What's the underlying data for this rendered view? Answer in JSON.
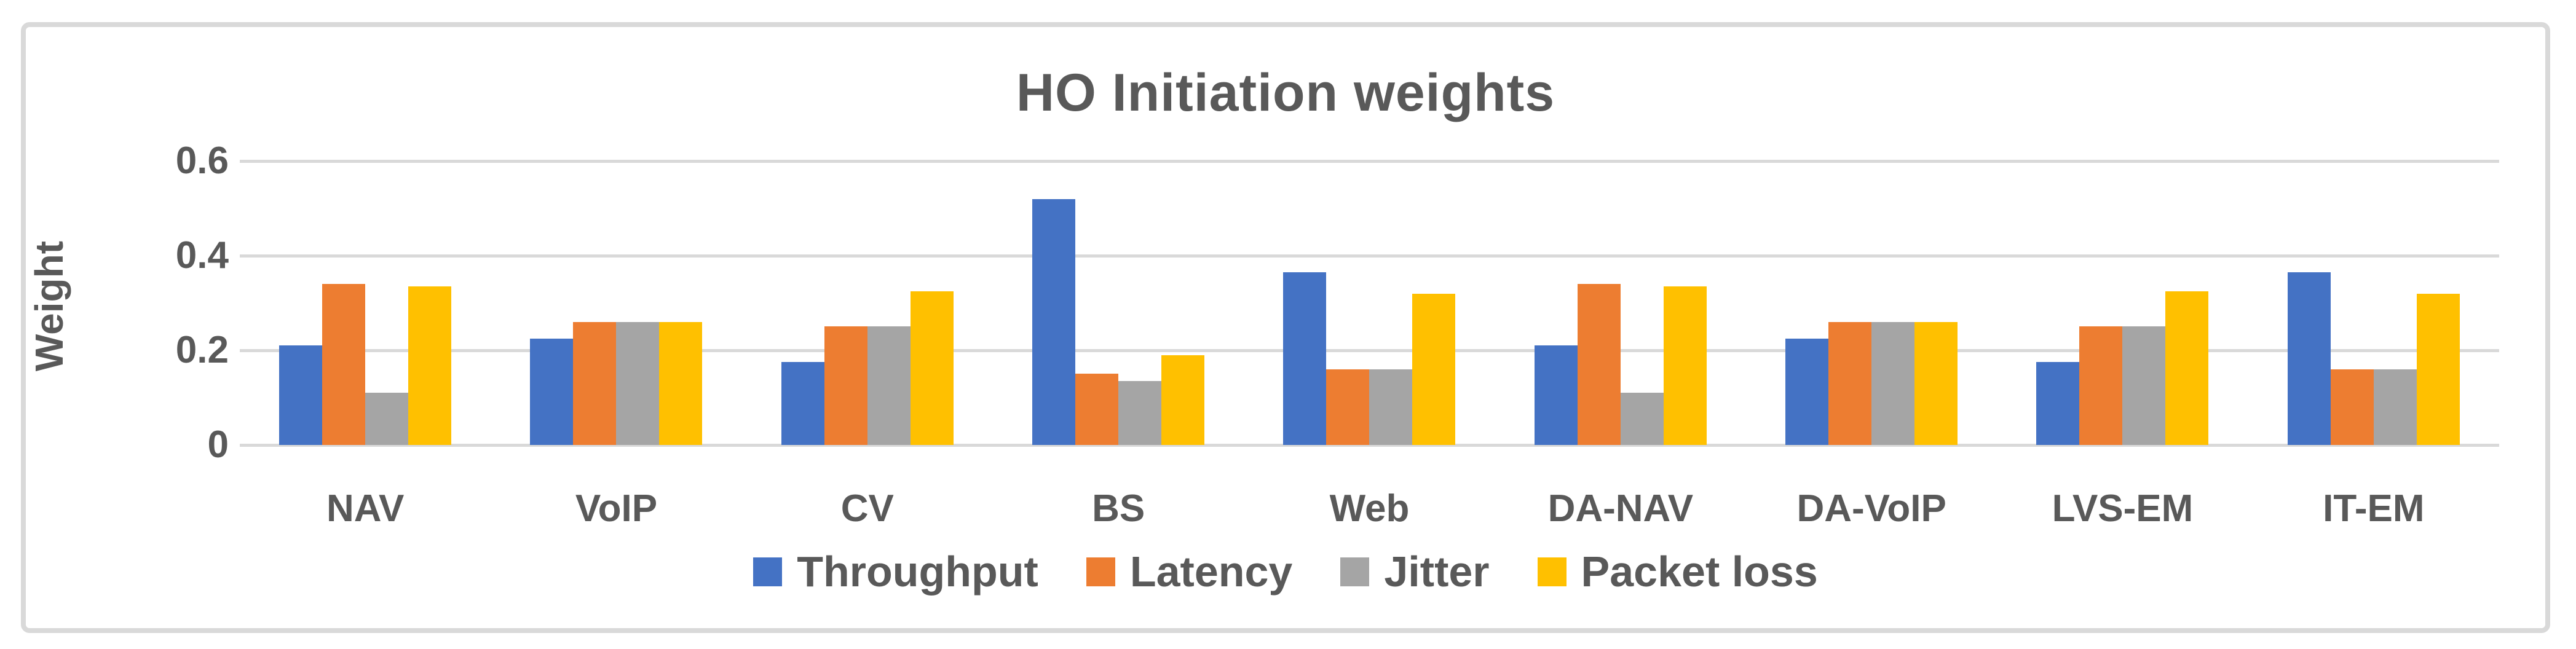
{
  "chart_data": {
    "type": "bar",
    "title": "HO Initiation weights",
    "xlabel": "",
    "ylabel": "Weight",
    "ylim": [
      0,
      0.6
    ],
    "yticks": [
      "0",
      "0.2",
      "0.4",
      "0.6"
    ],
    "grid": true,
    "legend_position": "bottom",
    "categories": [
      "NAV",
      "VoIP",
      "CV",
      "BS",
      "Web",
      "DA-NAV",
      "DA-VoIP",
      "LVS-EM",
      "IT-EM"
    ],
    "series": [
      {
        "name": "Throughput",
        "color": "#4472C4",
        "values": [
          0.21,
          0.225,
          0.175,
          0.52,
          0.365,
          0.21,
          0.225,
          0.175,
          0.365
        ]
      },
      {
        "name": "Latency",
        "color": "#ED7D31",
        "values": [
          0.34,
          0.26,
          0.25,
          0.15,
          0.16,
          0.34,
          0.26,
          0.25,
          0.16
        ]
      },
      {
        "name": "Jitter",
        "color": "#A5A5A5",
        "values": [
          0.11,
          0.26,
          0.25,
          0.135,
          0.16,
          0.11,
          0.26,
          0.25,
          0.16
        ]
      },
      {
        "name": "Packet loss",
        "color": "#FFC000",
        "values": [
          0.335,
          0.26,
          0.325,
          0.19,
          0.32,
          0.335,
          0.26,
          0.325,
          0.32
        ]
      }
    ]
  },
  "colors": {
    "text": "#595959",
    "gridline": "#D9D9D9",
    "border": "#D9D9D9",
    "background": "#FFFFFF"
  }
}
